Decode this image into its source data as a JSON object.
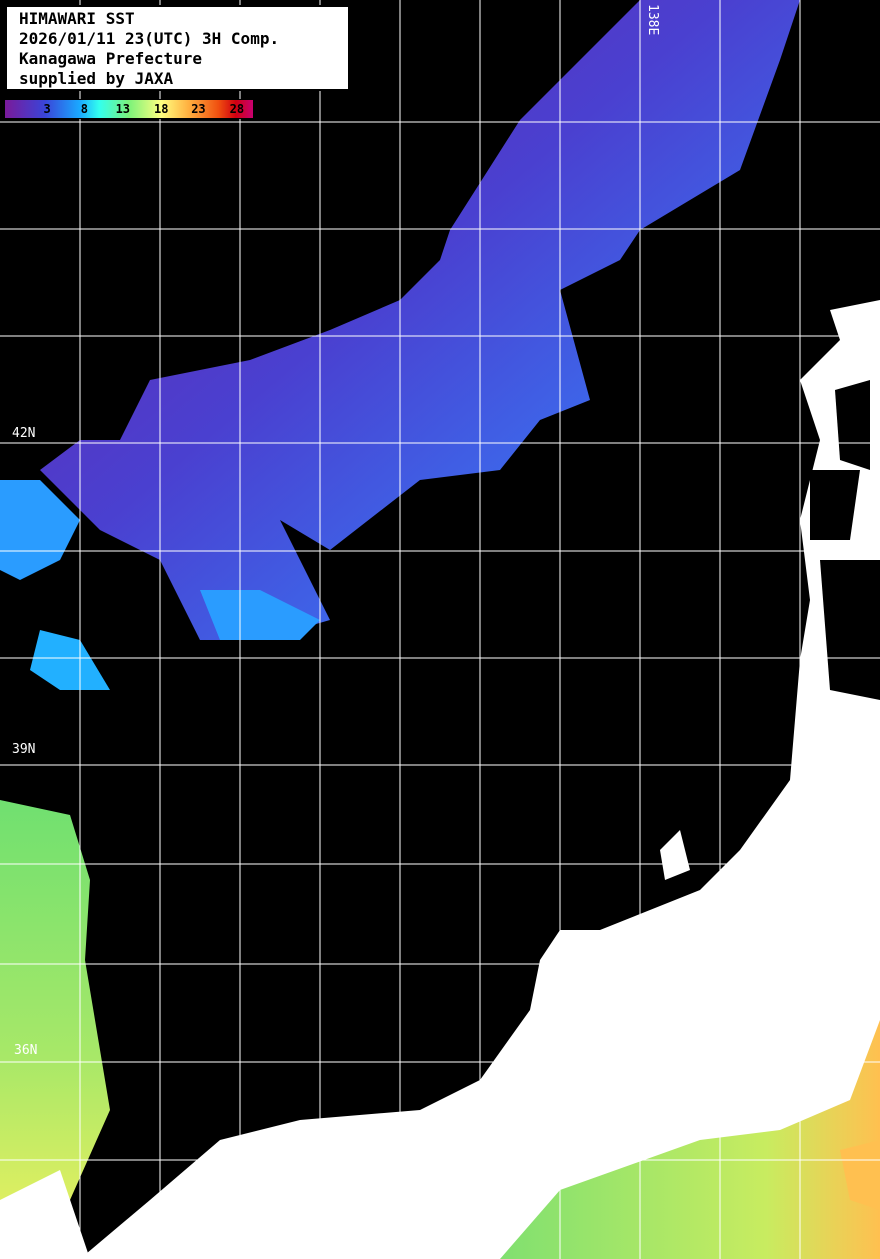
{
  "title_box": {
    "lines": [
      "HIMAWARI SST",
      "2026/01/11 23(UTC) 3H Comp.",
      "Kanagawa Prefecture",
      "supplied by JAXA"
    ]
  },
  "colorbar": {
    "ticks": [
      "3",
      "8",
      "13",
      "18",
      "23",
      "28"
    ],
    "colors": [
      "#7a1a9a",
      "#3a44d8",
      "#1aa8ff",
      "#33ffee",
      "#7cf27a",
      "#ffff80",
      "#ffb040",
      "#f05010",
      "#c80070"
    ]
  },
  "grid_labels": {
    "lon": "138E",
    "lat": [
      "42N",
      "39N",
      "36N"
    ]
  },
  "colors": {
    "land": "#ffffff",
    "no_data": "#000000",
    "grid": "#ffffff"
  }
}
